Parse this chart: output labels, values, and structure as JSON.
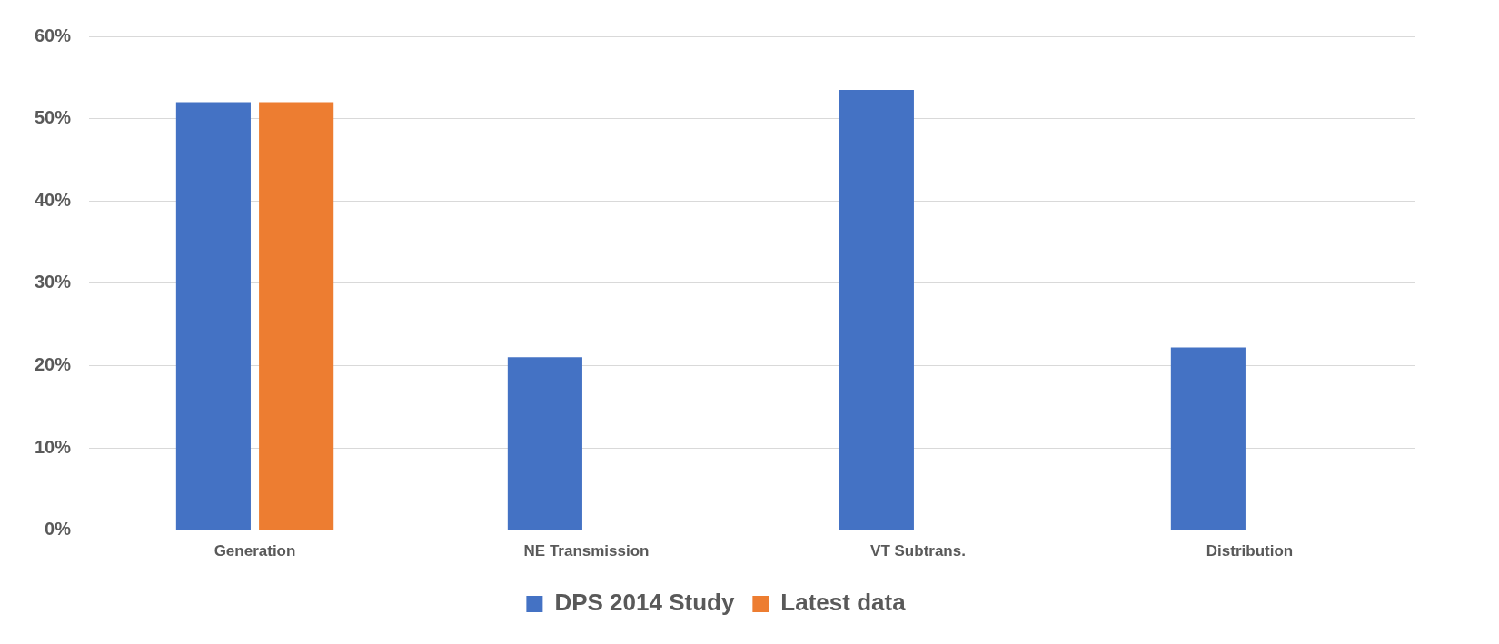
{
  "chart_data": {
    "type": "bar",
    "categories": [
      "Generation",
      "NE Transmission",
      "VT Subtrans.",
      "Distribution"
    ],
    "series": [
      {
        "name": "DPS 2014 Study",
        "color": "#4472c4",
        "values": [
          52,
          21,
          53.5,
          22.2
        ]
      },
      {
        "name": "Latest data",
        "color": "#ed7d31",
        "values": [
          52,
          null,
          null,
          null
        ]
      }
    ],
    "ylim": [
      0,
      60
    ],
    "yticks": [
      {
        "value": 0,
        "label": "0%"
      },
      {
        "value": 10,
        "label": "10%"
      },
      {
        "value": 20,
        "label": "20%"
      },
      {
        "value": 30,
        "label": "30%"
      },
      {
        "value": 40,
        "label": "40%"
      },
      {
        "value": 50,
        "label": "50%"
      },
      {
        "value": 60,
        "label": "60%"
      }
    ],
    "grid": "y",
    "legend": "bottom"
  }
}
